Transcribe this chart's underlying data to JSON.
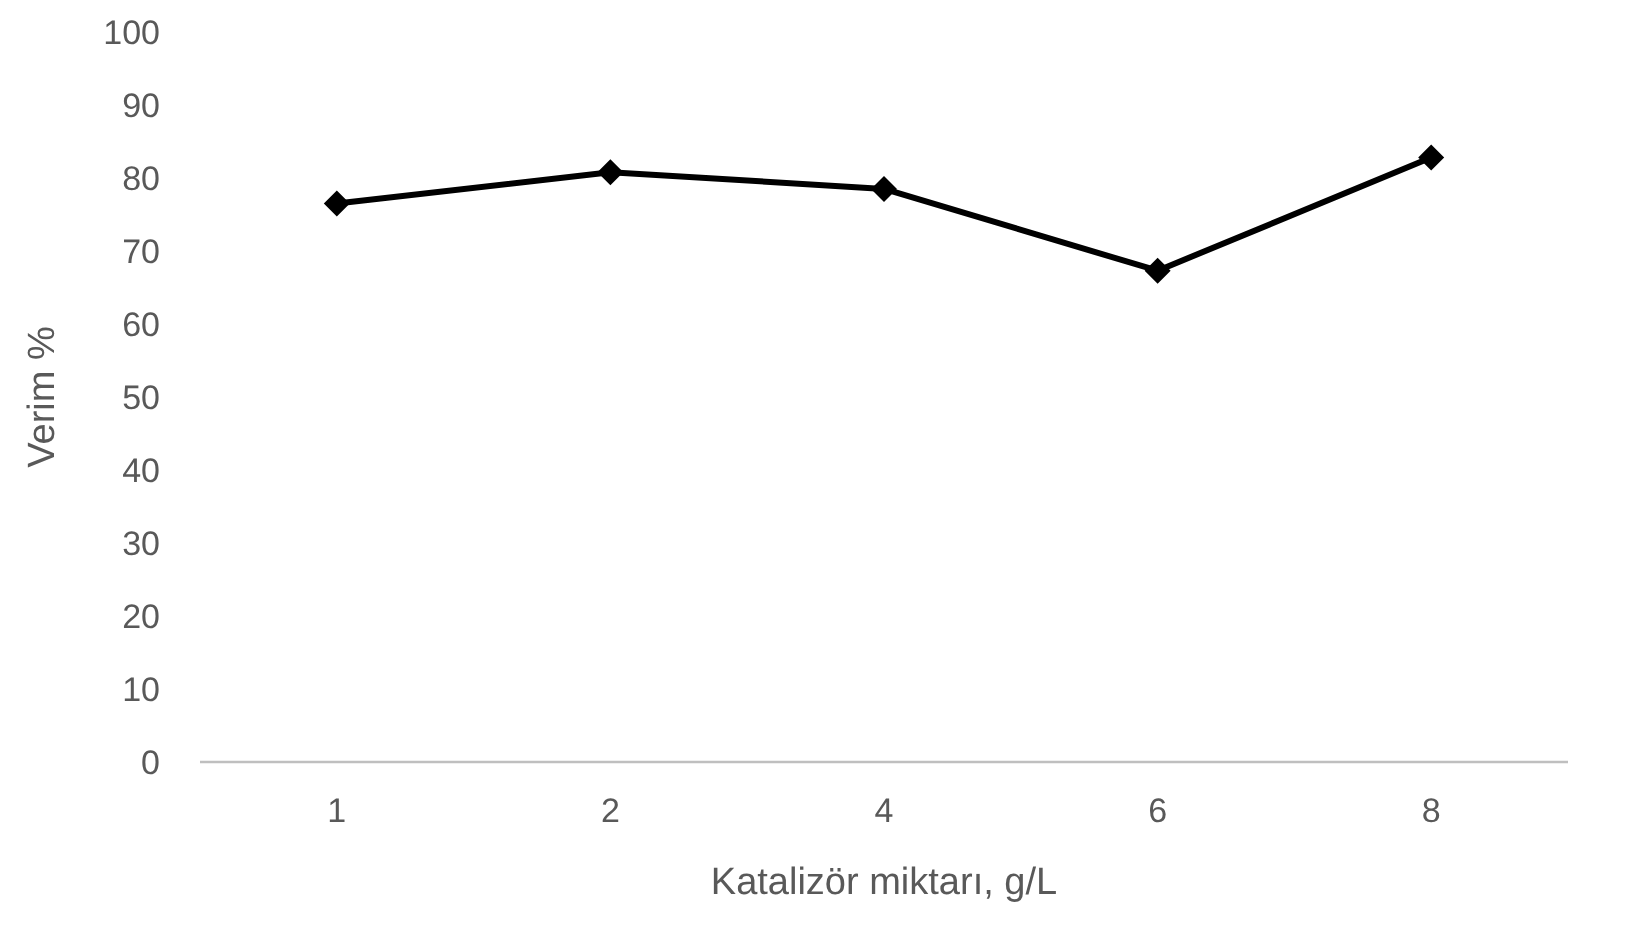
{
  "chart_data": {
    "type": "line",
    "xlabel": "Katalizör miktarı, g/L",
    "ylabel": "Verim %",
    "categories": [
      "1",
      "2",
      "4",
      "6",
      "8"
    ],
    "series": [
      {
        "color": "#000000",
        "values": [
          76.5,
          80.8,
          78.5,
          67.3,
          82.8
        ]
      }
    ],
    "ylim": [
      0,
      100
    ],
    "yticks": [
      0,
      10,
      20,
      30,
      40,
      50,
      60,
      70,
      80,
      90,
      100
    ],
    "grid": false,
    "marker": "diamond",
    "line_style": "solid"
  }
}
